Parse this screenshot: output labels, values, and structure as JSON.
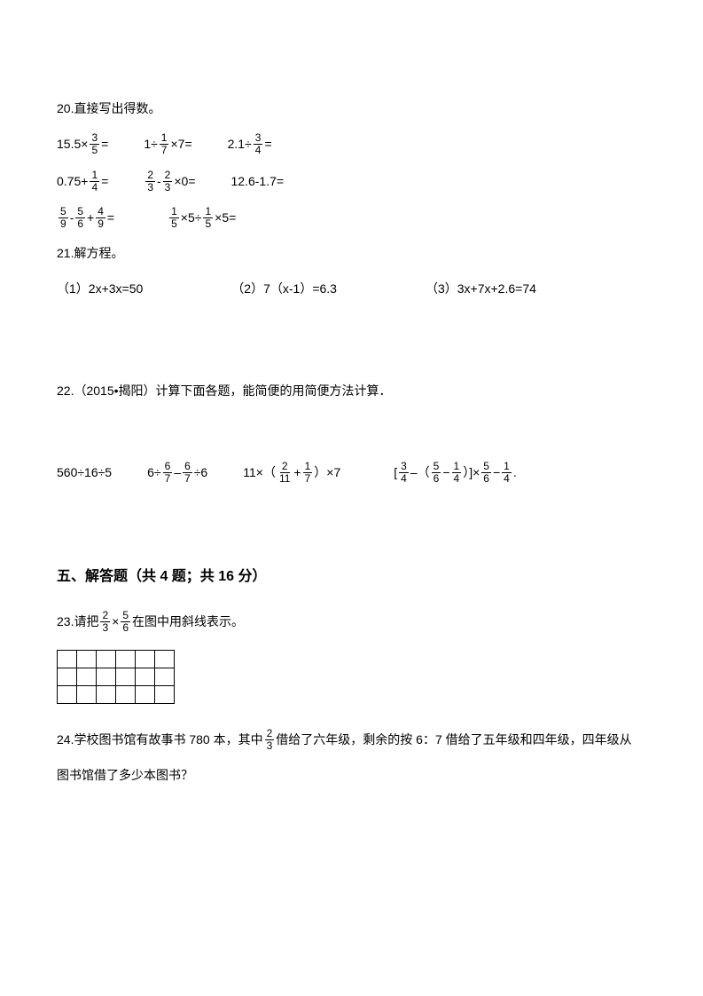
{
  "q20": {
    "title": "20.直接写出得数。",
    "row1": {
      "a_pre": "15.5×",
      "a_num": "3",
      "a_den": "5",
      "a_post": " =",
      "b_pre": "1÷",
      "b_num": "1",
      "b_den": "7",
      "b_post": " ×7=",
      "c_pre": "2.1÷",
      "c_num": "3",
      "c_den": "4",
      "c_post": " ="
    },
    "row2": {
      "a_pre": "0.75+",
      "a_num": "1",
      "a_den": "4",
      "a_post": " =",
      "b_num1": "2",
      "b_den1": "3",
      "b_mid": " - ",
      "b_num2": "2",
      "b_den2": "3",
      "b_post": " ×0=",
      "c": "12.6-1.7="
    },
    "row3": {
      "a_n1": "5",
      "a_d1": "9",
      "a_s1": "-",
      "a_n2": "5",
      "a_d2": "6",
      "a_s2": "+",
      "a_n3": "4",
      "a_d3": "9",
      "a_post": "=",
      "b_n1": "1",
      "b_d1": "5",
      "b_mid1": " ×5÷",
      "b_n2": "1",
      "b_d2": "5",
      "b_post": " ×5="
    }
  },
  "q21": {
    "title": "21.解方程。",
    "a": "（1）2x+3x=50",
    "b": "（2）7（x-1）=6.3",
    "c": "（3）3x+7x+2.6=74"
  },
  "q22": {
    "title": "22.（2015•揭阳）计算下面各题，能简便的用简便方法计算．",
    "p1": "560÷16÷5",
    "p2_pre": "6 ",
    "p2_div": " ÷",
    "p2_n1": "6",
    "p2_d1": "7",
    "p2_mid": " – ",
    "p2_n2": "6",
    "p2_d2": "7",
    "p2_post": " ÷6",
    "p3_pre": "11×（",
    "p3_n1": "2",
    "p3_d1": "11",
    "p3_plus": "+",
    "p3_n2": "1",
    "p3_d2": "7",
    "p3_post": "）×7",
    "p4_pre": "[ ",
    "p4_n1": "3",
    "p4_d1": "4",
    "p4_s1": " –（",
    "p4_n2": "5",
    "p4_d2": "6",
    "p4_s2": "−",
    "p4_n3": "1",
    "p4_d3": "4",
    "p4_s3": "）]×",
    "p4_n4": "5",
    "p4_d4": "6",
    "p4_s4": "−",
    "p4_n5": "1",
    "p4_d5": "4",
    "p4_post": " ."
  },
  "section5": {
    "title": "五、解答题（共 4 题；共 16 分）"
  },
  "q23": {
    "pre": "23.请把 ",
    "n1": "2",
    "d1": "3",
    "mid": " × ",
    "n2": "5",
    "d2": "6",
    "post": " 在图中用斜线表示。",
    "grid": {
      "rows": 3,
      "cols": 6
    }
  },
  "q24": {
    "pre": "24.学校图书馆有故事书 780 本，其中 ",
    "n": "2",
    "d": "3",
    "post": " 借给了六年级，剩余的按 6：7 借给了五年级和四年级，四年级从",
    "line2": "图书馆借了多少本图书？"
  }
}
